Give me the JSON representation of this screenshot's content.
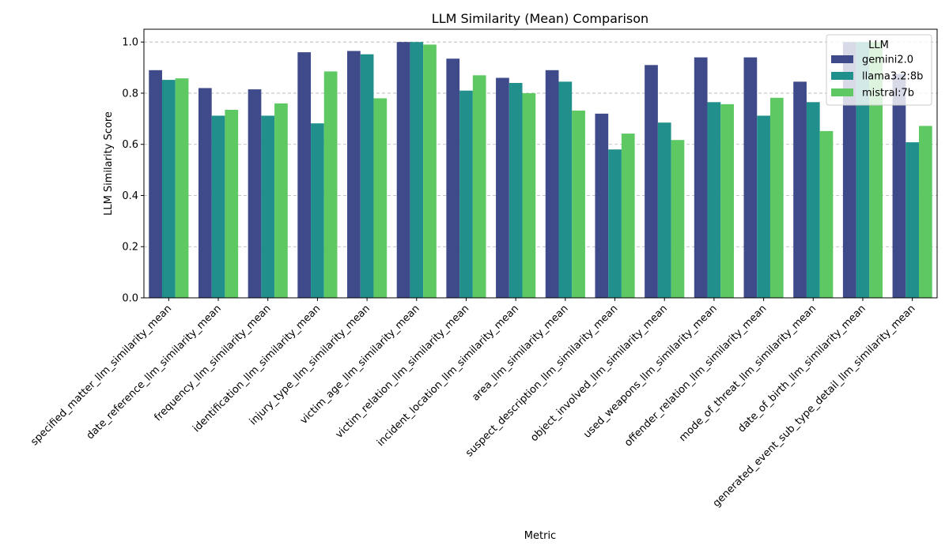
{
  "chart_data": {
    "type": "bar",
    "title": "LLM Similarity (Mean) Comparison",
    "xlabel": "Metric",
    "ylabel": "LLM Similarity Score",
    "ylim": [
      0,
      1.05
    ],
    "yticks": [
      "0.0",
      "0.2",
      "0.4",
      "0.6",
      "0.8",
      "1.0"
    ],
    "grid": "y",
    "legend": {
      "title": "LLM",
      "placement": "top-right"
    },
    "categories": [
      "specified_matter_llm_similarity_mean",
      "date_reference_llm_similarity_mean",
      "frequency_llm_similarity_mean",
      "identification_llm_similarity_mean",
      "injury_type_llm_similarity_mean",
      "victim_age_llm_similarity_mean",
      "victim_relation_llm_similarity_mean",
      "incident_location_llm_similarity_mean",
      "area_llm_similarity_mean",
      "suspect_description_llm_similarity_mean",
      "object_involved_llm_similarity_mean",
      "used_weapons_llm_similarity_mean",
      "offender_relation_llm_similarity_mean",
      "mode_of_threat_llm_similarity_mean",
      "date_of_birth_llm_similarity_mean",
      "generated_event_sub_type_detail_llm_similarity_mean"
    ],
    "series": [
      {
        "name": "gemini2.0",
        "color": "#3e4a89",
        "values": [
          0.89,
          0.82,
          0.815,
          0.96,
          0.965,
          1.0,
          0.935,
          0.86,
          0.89,
          0.72,
          0.91,
          0.94,
          0.94,
          0.845,
          1.0,
          0.875
        ]
      },
      {
        "name": "llama3.2:8b",
        "color": "#21908d",
        "values": [
          0.852,
          0.712,
          0.712,
          0.682,
          0.952,
          1.0,
          0.81,
          0.84,
          0.845,
          0.58,
          0.685,
          0.765,
          0.712,
          0.765,
          1.0,
          0.608
        ]
      },
      {
        "name": "mistral:7b",
        "color": "#5ec962",
        "values": [
          0.858,
          0.735,
          0.76,
          0.885,
          0.78,
          0.99,
          0.87,
          0.8,
          0.732,
          0.642,
          0.617,
          0.757,
          0.782,
          0.652,
          1.0,
          0.672
        ]
      }
    ]
  }
}
